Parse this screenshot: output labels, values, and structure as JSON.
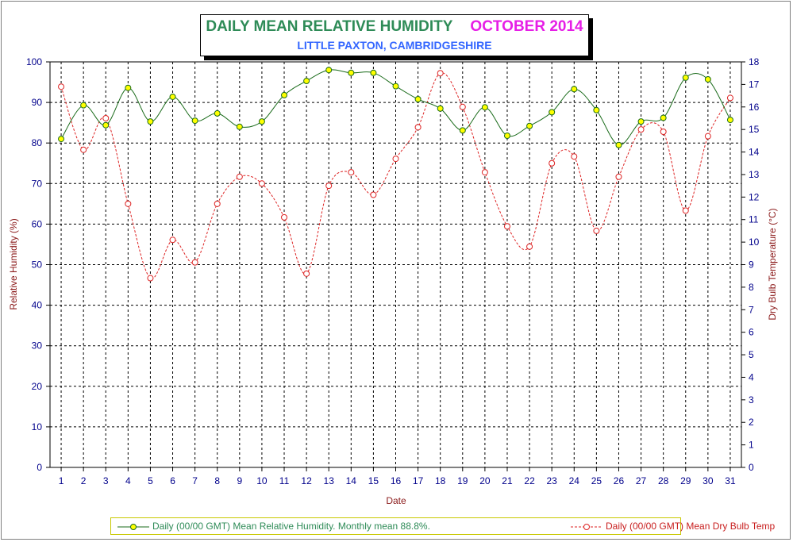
{
  "title": {
    "main": "DAILY MEAN RELATIVE HUMIDITY",
    "date": "OCTOBER 2014",
    "subtitle": "LITTLE PAXTON, CAMBRIDGESHIRE"
  },
  "colors": {
    "humidity_line": "#1a6b1a",
    "humidity_marker": "#ffff00",
    "temp_line": "#dd2222",
    "title_green": "#2e8b57",
    "title_magenta": "#e61ee6",
    "subtitle_blue": "#3366ff",
    "tick_text": "#00008b",
    "axis_title": "#8b1a1a"
  },
  "legend": {
    "humidity": "Daily (00/00 GMT) Mean Relative Humidity. Monthly mean 88.8%.",
    "temperature": "Daily (00/00 GMT) Mean Dry Bulb Temp",
    "placement": "bottom"
  },
  "chart_data": {
    "type": "line",
    "xlabel": "Date",
    "ylabel_left": "Relative Humidity (%)",
    "ylabel_right": "Dry Bulb Temperature (°C)",
    "x": [
      1,
      2,
      3,
      4,
      5,
      6,
      7,
      8,
      9,
      10,
      11,
      12,
      13,
      14,
      15,
      16,
      17,
      18,
      19,
      20,
      21,
      22,
      23,
      24,
      25,
      26,
      27,
      28,
      29,
      30,
      31
    ],
    "ylim_left": [
      0,
      100
    ],
    "yticks_left": [
      0,
      10,
      20,
      30,
      40,
      50,
      60,
      70,
      80,
      90,
      100
    ],
    "ylim_right": [
      0,
      18
    ],
    "yticks_right": [
      0,
      1,
      2,
      3,
      4,
      5,
      6,
      7,
      8,
      9,
      10,
      11,
      12,
      13,
      14,
      15,
      16,
      17,
      18
    ],
    "grid": true,
    "series": [
      {
        "name": "Daily (00/00 GMT) Mean Relative Humidity. Monthly mean 88.8%.",
        "axis": "left",
        "style": "solid",
        "values": [
          81.0,
          89.3,
          84.4,
          93.6,
          85.3,
          91.4,
          85.5,
          87.3,
          84.0,
          85.3,
          91.8,
          95.3,
          98.0,
          97.3,
          97.3,
          94.0,
          90.8,
          88.5,
          83.1,
          88.8,
          81.8,
          84.2,
          87.6,
          93.3,
          88.1,
          79.5,
          85.3,
          86.2,
          96.1,
          95.7,
          85.7
        ]
      },
      {
        "name": "Daily (00/00 GMT) Mean Dry Bulb Temp",
        "axis": "right",
        "style": "dashed",
        "values": [
          16.9,
          14.1,
          15.5,
          11.7,
          8.4,
          10.1,
          9.1,
          11.7,
          12.9,
          12.6,
          11.1,
          8.6,
          12.5,
          13.1,
          12.1,
          13.7,
          15.1,
          17.5,
          16.0,
          13.1,
          10.7,
          9.8,
          13.5,
          13.8,
          10.5,
          12.9,
          15.0,
          14.9,
          11.4,
          14.7,
          16.4
        ]
      }
    ]
  }
}
